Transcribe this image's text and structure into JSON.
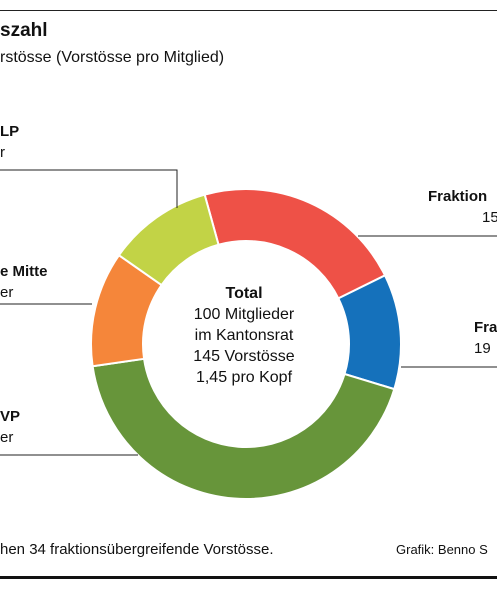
{
  "title": "szahl",
  "subtitle": "rstösse (Vorstösse pro Mitglied)",
  "center": {
    "title": "Total",
    "line1": "100 Mitglieder",
    "line2": "im Kantonsrat",
    "line3": "145 Vorstösse",
    "line4": "1,45 pro Kopf"
  },
  "labels": {
    "glp_name": "LP",
    "glp_value": "r",
    "mitte_name": "e Mitte",
    "mitte_value": "er",
    "svp_name": "VP",
    "svp_value": "er",
    "red_name": "Fraktion",
    "red_value": "15",
    "blue_name": "Fra",
    "blue_value": "19"
  },
  "footnote": "hen 34 fraktionsübergreifende Vorstösse.",
  "credit": "Grafik: Benno S",
  "colors": {
    "red": "#ee5147",
    "blue": "#1571bb",
    "green": "#67953a",
    "orange": "#f5863a",
    "lime": "#c2d346"
  },
  "chart_data": {
    "type": "pie",
    "donut": true,
    "slices": [
      {
        "value": 22,
        "color": "#ee5147"
      },
      {
        "value": 12,
        "color": "#1571bb"
      },
      {
        "value": 43,
        "color": "#67953a"
      },
      {
        "value": 12,
        "color": "#f5863a"
      },
      {
        "value": 11,
        "color": "#c2d346"
      }
    ]
  }
}
